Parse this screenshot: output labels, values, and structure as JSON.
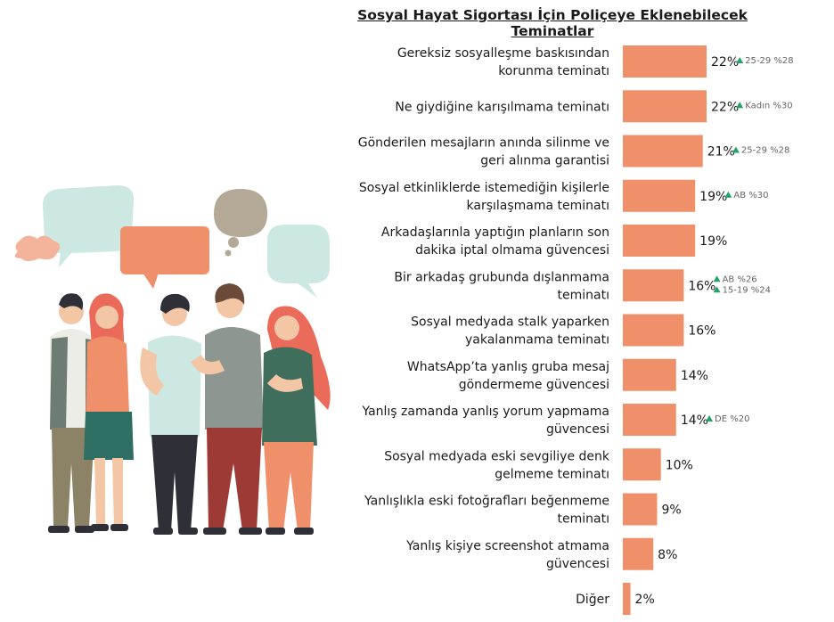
{
  "chart_data": {
    "type": "bar",
    "orientation": "horizontal",
    "title": "Sosyal Hayat Sigortası İçin Poliçeye Eklenebilecek Teminatlar",
    "categories": [
      [
        "Gereksiz sosyalleşme baskısından",
        "korunma teminatı"
      ],
      [
        "Ne giydiğine karışılmama teminatı"
      ],
      [
        "Gönderilen mesajların anında silinme ve",
        "geri alınma garantisi"
      ],
      [
        "Sosyal etkinliklerde istemediğin kişilerle",
        "karşılaşmama teminatı"
      ],
      [
        "Arkadaşlarınla yaptığın planların son",
        "dakika iptal olmama güvencesi"
      ],
      [
        "Bir arkadaş grubunda dışlanmama",
        "teminatı"
      ],
      [
        "Sosyal medyada stalk yaparken",
        "yakalanmama teminatı"
      ],
      [
        "WhatsApp’ta yanlış gruba mesaj",
        "göndermeme güvencesi"
      ],
      [
        "Yanlış zamanda yanlış yorum yapmama",
        "güvencesi"
      ],
      [
        "Sosyal medyada eski sevgiliye denk",
        "gelmeme teminatı"
      ],
      [
        "Yanlışlıkla eski fotoğrafları beğenmeme",
        "teminatı"
      ],
      [
        "Yanlış kişiye screenshot atmama",
        "güvencesi"
      ],
      [
        "Diğer"
      ]
    ],
    "values": [
      22,
      22,
      21,
      19,
      19,
      16,
      16,
      14,
      14,
      10,
      9,
      8,
      2
    ],
    "value_labels": [
      "22%",
      "22%",
      "21%",
      "19%",
      "19%",
      "16%",
      "16%",
      "14%",
      "14%",
      "10%",
      "9%",
      "8%",
      "2%"
    ],
    "annotations": [
      [
        "25-29 %28"
      ],
      [
        "Kadın %30"
      ],
      [
        "25-29 %28"
      ],
      [
        "AB %30"
      ],
      [],
      [
        "AB %26",
        "15-19 %24"
      ],
      [],
      [],
      [
        "DE %20"
      ],
      [],
      [],
      [],
      []
    ],
    "annotation_marker": "▲",
    "xlim": [
      0,
      22
    ],
    "grid": false,
    "legend": "none",
    "colors": {
      "bar": "#F0906B",
      "arrow": "#21A366",
      "annotation_text": "#666666"
    }
  },
  "illustration": {
    "description_icon": "people-talking-illustration",
    "colors": {
      "bubble_teal": "#CDE7E3",
      "bubble_coral": "#F0906B",
      "bubble_taupe": "#B3A996",
      "skin": "#F3C6A5",
      "hair_dark": "#2F2F38",
      "hair_red": "#EB6B5A",
      "green": "#4F7E69",
      "olive": "#8C8366",
      "maroon": "#9E3A35",
      "grey": "#8E9692"
    }
  }
}
